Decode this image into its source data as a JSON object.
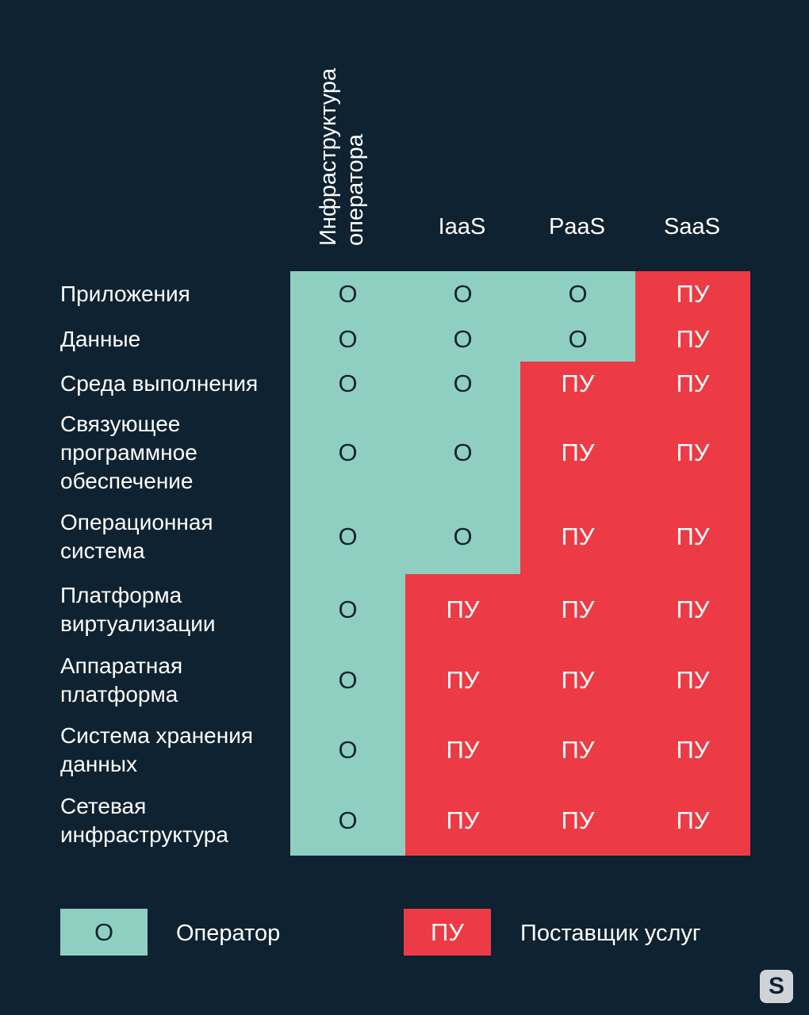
{
  "columns": [
    {
      "label": "Инфраструктура\nоператора"
    },
    {
      "label": "IaaS"
    },
    {
      "label": "PaaS"
    },
    {
      "label": "SaaS"
    }
  ],
  "rows": [
    {
      "label": "Приложения",
      "cells": [
        "О",
        "О",
        "О",
        "ПУ"
      ]
    },
    {
      "label": "Данные",
      "cells": [
        "О",
        "О",
        "О",
        "ПУ"
      ]
    },
    {
      "label": "Среда выполнения",
      "cells": [
        "О",
        "О",
        "ПУ",
        "ПУ"
      ]
    },
    {
      "label": "Связующее\nпрограммное\nобеспечение",
      "cells": [
        "О",
        "О",
        "ПУ",
        "ПУ"
      ]
    },
    {
      "label": "Операционная\nсистема",
      "cells": [
        "О",
        "О",
        "ПУ",
        "ПУ"
      ]
    },
    {
      "label": "Платформа\nвиртуализации",
      "cells": [
        "О",
        "ПУ",
        "ПУ",
        "ПУ"
      ]
    },
    {
      "label": "Аппаратная\nплатформа",
      "cells": [
        "О",
        "ПУ",
        "ПУ",
        "ПУ"
      ]
    },
    {
      "label": "Система хранения\nданных",
      "cells": [
        "О",
        "ПУ",
        "ПУ",
        "ПУ"
      ]
    },
    {
      "label": "Сетевая\nинфраструктура",
      "cells": [
        "О",
        "ПУ",
        "ПУ",
        "ПУ"
      ]
    }
  ],
  "legend": [
    {
      "code": "О",
      "text": "Оператор",
      "color": "#8fcfc1"
    },
    {
      "code": "ПУ",
      "text": "Поставщик услуг",
      "color": "#ec3b44"
    }
  ],
  "logo": {
    "letter": "S",
    "icon": "s-logo-icon"
  },
  "colors": {
    "background": "#0f2231",
    "operator": "#8fcfc1",
    "provider": "#ec3b44"
  }
}
